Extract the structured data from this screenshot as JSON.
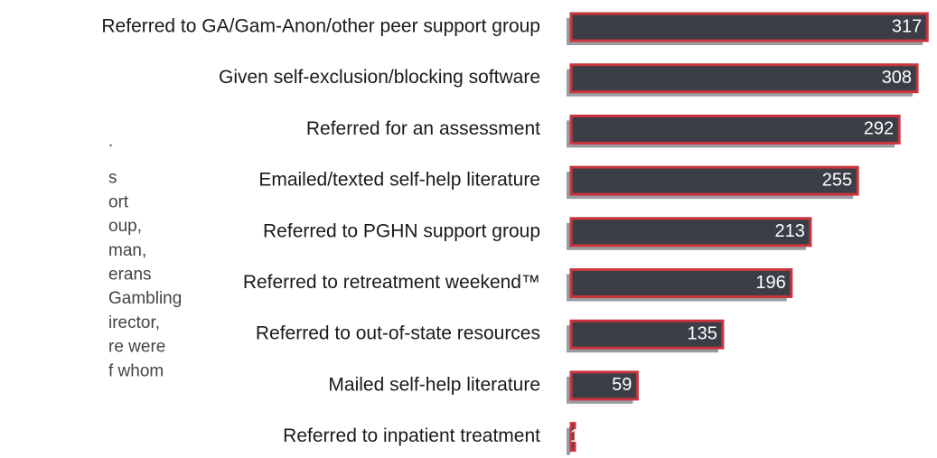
{
  "side_text": [
    ".",
    "s",
    "ort",
    "oup,",
    "man,",
    "erans",
    "Gambling",
    "irector,",
    "re were",
    "f whom"
  ],
  "chart_data": {
    "type": "hbar",
    "categories": [
      "Referred to GA/Gam-Anon/other peer support group",
      "Given self-exclusion/blocking software",
      "Referred for an assessment",
      "Emailed/texted self-help literature",
      "Referred to PGHN support group",
      "Referred to retreatment weekend™",
      "Referred to out-of-state resources",
      "Mailed self-help literature",
      "Referred to inpatient treatment"
    ],
    "values": [
      317,
      308,
      292,
      255,
      213,
      196,
      135,
      59,
      1
    ],
    "color": "#3b3e46",
    "outline": "#c9343d",
    "xlim": [
      0,
      320
    ]
  }
}
